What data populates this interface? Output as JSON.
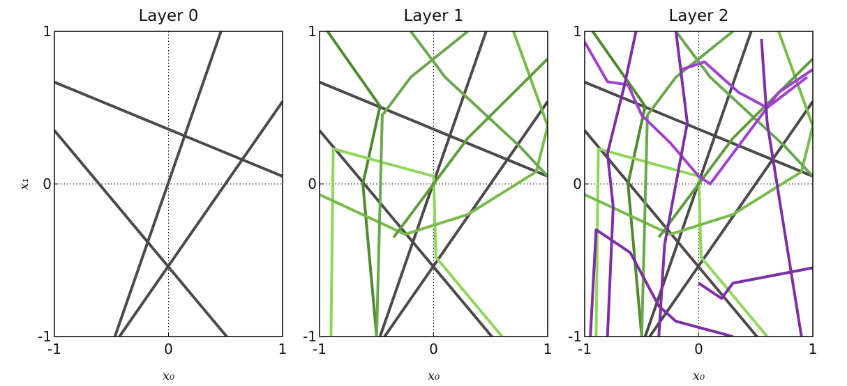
{
  "chart_data": [
    {
      "type": "line",
      "title": "Layer 0",
      "xlabel": "x₀",
      "ylabel": "x₁",
      "xlim": [
        -1,
        1
      ],
      "ylim": [
        -1,
        1
      ],
      "xticks": [
        -1,
        0,
        1
      ],
      "yticks": [
        -1,
        0,
        1
      ],
      "zero_lines": true,
      "series": [
        {
          "color": "#4a4a4a",
          "x": [
            -1,
            1
          ],
          "y": [
            0.667,
            0.05
          ]
        },
        {
          "color": "#4a4a4a",
          "x": [
            -1,
            0.51
          ],
          "y": [
            0.35,
            -1
          ]
        },
        {
          "color": "#4a4a4a",
          "x": [
            -0.47,
            0.46
          ],
          "y": [
            -1,
            1
          ]
        },
        {
          "color": "#4a4a4a",
          "x": [
            -0.43,
            1
          ],
          "y": [
            -1,
            0.54
          ]
        }
      ]
    },
    {
      "type": "line",
      "title": "Layer 1",
      "xlabel": "x₀",
      "xlim": [
        -1,
        1
      ],
      "ylim": [
        -1,
        1
      ],
      "xticks": [
        -1,
        0,
        1
      ],
      "yticks": [
        -1,
        0,
        1
      ],
      "zero_lines": true,
      "series": [
        {
          "color": "#4a4a4a",
          "x": [
            -1,
            1
          ],
          "y": [
            0.667,
            0.05
          ]
        },
        {
          "color": "#4a4a4a",
          "x": [
            -1,
            0.51
          ],
          "y": [
            0.35,
            -1
          ]
        },
        {
          "color": "#4a4a4a",
          "x": [
            -0.47,
            0.46
          ],
          "y": [
            -1,
            1
          ]
        },
        {
          "color": "#4a4a4a",
          "x": [
            -0.43,
            1
          ],
          "y": [
            -1,
            0.54
          ]
        },
        {
          "color": "#4f8a2f",
          "x": [
            -0.93,
            -0.47,
            -0.62,
            -0.5
          ],
          "y": [
            1,
            0.51,
            0,
            -1
          ]
        },
        {
          "color": "#8fd65a",
          "x": [
            -0.9,
            -0.88,
            0,
            0.02,
            0.6
          ],
          "y": [
            -1,
            0.23,
            0.05,
            -0.48,
            -1
          ]
        },
        {
          "color": "#77bb48",
          "x": [
            -1,
            -0.25,
            0.3,
            0.9,
            1,
            0.7
          ],
          "y": [
            -0.07,
            -0.33,
            -0.2,
            0.08,
            0.38,
            1
          ]
        },
        {
          "color": "#6aa84f",
          "x": [
            -0.5,
            -0.45,
            -0.2,
            0.3
          ],
          "y": [
            -1,
            0.45,
            0.7,
            1
          ]
        },
        {
          "color": "#6aa84f",
          "x": [
            -0.2,
            0.1,
            0.75,
            1
          ],
          "y": [
            1,
            0.7,
            0.25,
            0.05
          ]
        },
        {
          "color": "#5f9e3d",
          "x": [
            -0.35,
            0.3,
            1
          ],
          "y": [
            -0.35,
            0.3,
            0.82
          ]
        }
      ]
    },
    {
      "type": "line",
      "title": "Layer 2",
      "xlabel": "x₀",
      "xlim": [
        -1,
        1
      ],
      "ylim": [
        -1,
        1
      ],
      "xticks": [
        -1,
        0,
        1
      ],
      "yticks": [
        -1,
        0,
        1
      ],
      "zero_lines": true,
      "series": [
        {
          "color": "#4a4a4a",
          "x": [
            -1,
            1
          ],
          "y": [
            0.667,
            0.05
          ]
        },
        {
          "color": "#4a4a4a",
          "x": [
            -1,
            0.51
          ],
          "y": [
            0.35,
            -1
          ]
        },
        {
          "color": "#4a4a4a",
          "x": [
            -0.47,
            0.46
          ],
          "y": [
            -1,
            1
          ]
        },
        {
          "color": "#4a4a4a",
          "x": [
            -0.43,
            1
          ],
          "y": [
            -1,
            0.54
          ]
        },
        {
          "color": "#4f8a2f",
          "x": [
            -0.93,
            -0.47,
            -0.62,
            -0.5
          ],
          "y": [
            1,
            0.51,
            0,
            -1
          ]
        },
        {
          "color": "#8fd65a",
          "x": [
            -0.9,
            -0.88,
            0,
            0.02,
            0.6
          ],
          "y": [
            -1,
            0.23,
            0.05,
            -0.48,
            -1
          ]
        },
        {
          "color": "#77bb48",
          "x": [
            -1,
            -0.25,
            0.3,
            0.9,
            1,
            0.7
          ],
          "y": [
            -0.07,
            -0.33,
            -0.2,
            0.08,
            0.38,
            1
          ]
        },
        {
          "color": "#6aa84f",
          "x": [
            -0.5,
            -0.45,
            -0.2,
            0.3
          ],
          "y": [
            -1,
            0.45,
            0.7,
            1
          ]
        },
        {
          "color": "#6aa84f",
          "x": [
            -0.2,
            0.1,
            0.75,
            1
          ],
          "y": [
            1,
            0.7,
            0.25,
            0.05
          ]
        },
        {
          "color": "#5f9e3d",
          "x": [
            -0.35,
            0.3,
            1
          ],
          "y": [
            -0.35,
            0.3,
            0.82
          ]
        },
        {
          "color": "#a040d0",
          "x": [
            -1,
            -0.8,
            -0.62,
            -0.5,
            -0.25,
            0,
            0.1,
            0.35,
            0.7,
            1
          ],
          "y": [
            0.93,
            0.67,
            0.65,
            0.45,
            0.27,
            0.05,
            0,
            0.25,
            0.6,
            0.75
          ]
        },
        {
          "color": "#7d2fa8",
          "x": [
            -0.95,
            -0.9,
            -0.6,
            -0.35,
            -0.2,
            0.3
          ],
          "y": [
            -1,
            -0.3,
            -0.45,
            -0.8,
            -0.9,
            -1
          ]
        },
        {
          "color": "#7d2fa8",
          "x": [
            -0.8,
            -0.75,
            -0.8,
            -0.65,
            -0.55
          ],
          "y": [
            -1,
            -0.15,
            0.2,
            0.65,
            1
          ]
        },
        {
          "color": "#7d2fa8",
          "x": [
            -0.35,
            -0.3,
            -0.1,
            -0.2
          ],
          "y": [
            -1,
            -0.4,
            0.4,
            1
          ]
        },
        {
          "color": "#a040d0",
          "x": [
            -0.15,
            0.05,
            0.35,
            0.6,
            0.95
          ],
          "y": [
            0.75,
            0.8,
            0.6,
            0.5,
            0.7
          ]
        },
        {
          "color": "#7d2fa8",
          "x": [
            0,
            0.2,
            0.3,
            1
          ],
          "y": [
            -0.65,
            -0.75,
            -0.65,
            -0.55
          ]
        },
        {
          "color": "#7d2fa8",
          "x": [
            0.55,
            0.6,
            0.9
          ],
          "y": [
            0.95,
            0.4,
            -1
          ]
        }
      ]
    }
  ]
}
